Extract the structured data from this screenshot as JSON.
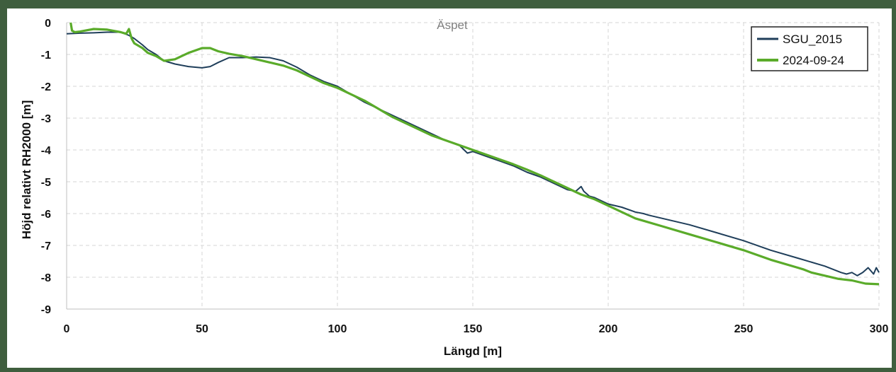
{
  "chart_data": {
    "type": "line",
    "title": "Äspet",
    "xlabel": "Längd [m]",
    "ylabel": "Höjd relativt RH2000 [m]",
    "xlim": [
      0,
      300
    ],
    "ylim": [
      -9,
      0
    ],
    "xticks": [
      0,
      50,
      100,
      150,
      200,
      250,
      300
    ],
    "yticks": [
      0,
      -1,
      -2,
      -3,
      -4,
      -5,
      -6,
      -7,
      -8,
      -9
    ],
    "grid": true,
    "legend": "top-right",
    "series": [
      {
        "name": "SGU_2015",
        "color": "#1f3e5a",
        "x": [
          0,
          5,
          10,
          15,
          20,
          23,
          25,
          28,
          30,
          33,
          36,
          40,
          45,
          50,
          53,
          56,
          60,
          65,
          70,
          75,
          80,
          85,
          90,
          95,
          100,
          105,
          110,
          115,
          120,
          125,
          130,
          135,
          140,
          145,
          148,
          150,
          155,
          160,
          165,
          170,
          175,
          180,
          185,
          188,
          190,
          191,
          193,
          195,
          200,
          205,
          210,
          213,
          215,
          220,
          230,
          240,
          250,
          260,
          270,
          280,
          286,
          288,
          290,
          292,
          294,
          296,
          298,
          299,
          300
        ],
        "y": [
          -0.35,
          -0.33,
          -0.32,
          -0.3,
          -0.3,
          -0.4,
          -0.5,
          -0.7,
          -0.85,
          -1.0,
          -1.2,
          -1.3,
          -1.38,
          -1.42,
          -1.38,
          -1.25,
          -1.1,
          -1.1,
          -1.08,
          -1.1,
          -1.2,
          -1.4,
          -1.65,
          -1.85,
          -2.0,
          -2.25,
          -2.5,
          -2.7,
          -2.9,
          -3.1,
          -3.3,
          -3.5,
          -3.7,
          -3.85,
          -4.1,
          -4.05,
          -4.2,
          -4.35,
          -4.5,
          -4.7,
          -4.85,
          -5.05,
          -5.25,
          -5.3,
          -5.15,
          -5.3,
          -5.45,
          -5.5,
          -5.7,
          -5.8,
          -5.95,
          -6.0,
          -6.05,
          -6.15,
          -6.35,
          -6.6,
          -6.85,
          -7.15,
          -7.4,
          -7.65,
          -7.85,
          -7.9,
          -7.85,
          -7.95,
          -7.85,
          -7.7,
          -7.9,
          -7.7,
          -7.85
        ]
      },
      {
        "name": "2024-09-24",
        "color": "#5aab2a",
        "x": [
          1.5,
          2,
          3,
          5,
          10,
          15,
          20,
          22,
          23,
          23.5,
          24,
          25,
          28,
          30,
          33,
          36,
          40,
          45,
          50,
          53,
          56,
          60,
          65,
          70,
          75,
          80,
          85,
          90,
          95,
          100,
          105,
          110,
          115,
          120,
          125,
          130,
          135,
          140,
          145,
          150,
          155,
          160,
          165,
          170,
          175,
          180,
          185,
          190,
          195,
          200,
          205,
          210,
          220,
          230,
          240,
          250,
          260,
          270,
          272,
          275,
          280,
          285,
          290,
          295,
          300
        ],
        "y": [
          0,
          -0.25,
          -0.3,
          -0.28,
          -0.2,
          -0.22,
          -0.3,
          -0.35,
          -0.2,
          -0.35,
          -0.5,
          -0.65,
          -0.8,
          -0.95,
          -1.05,
          -1.2,
          -1.15,
          -0.95,
          -0.8,
          -0.8,
          -0.9,
          -0.98,
          -1.05,
          -1.15,
          -1.25,
          -1.35,
          -1.5,
          -1.7,
          -1.9,
          -2.05,
          -2.25,
          -2.45,
          -2.7,
          -2.95,
          -3.15,
          -3.35,
          -3.55,
          -3.7,
          -3.85,
          -4.0,
          -4.15,
          -4.3,
          -4.45,
          -4.62,
          -4.8,
          -5.0,
          -5.2,
          -5.4,
          -5.55,
          -5.75,
          -5.95,
          -6.15,
          -6.4,
          -6.65,
          -6.9,
          -7.15,
          -7.45,
          -7.7,
          -7.75,
          -7.85,
          -7.95,
          -8.05,
          -8.1,
          -8.2,
          -8.22
        ]
      }
    ]
  }
}
